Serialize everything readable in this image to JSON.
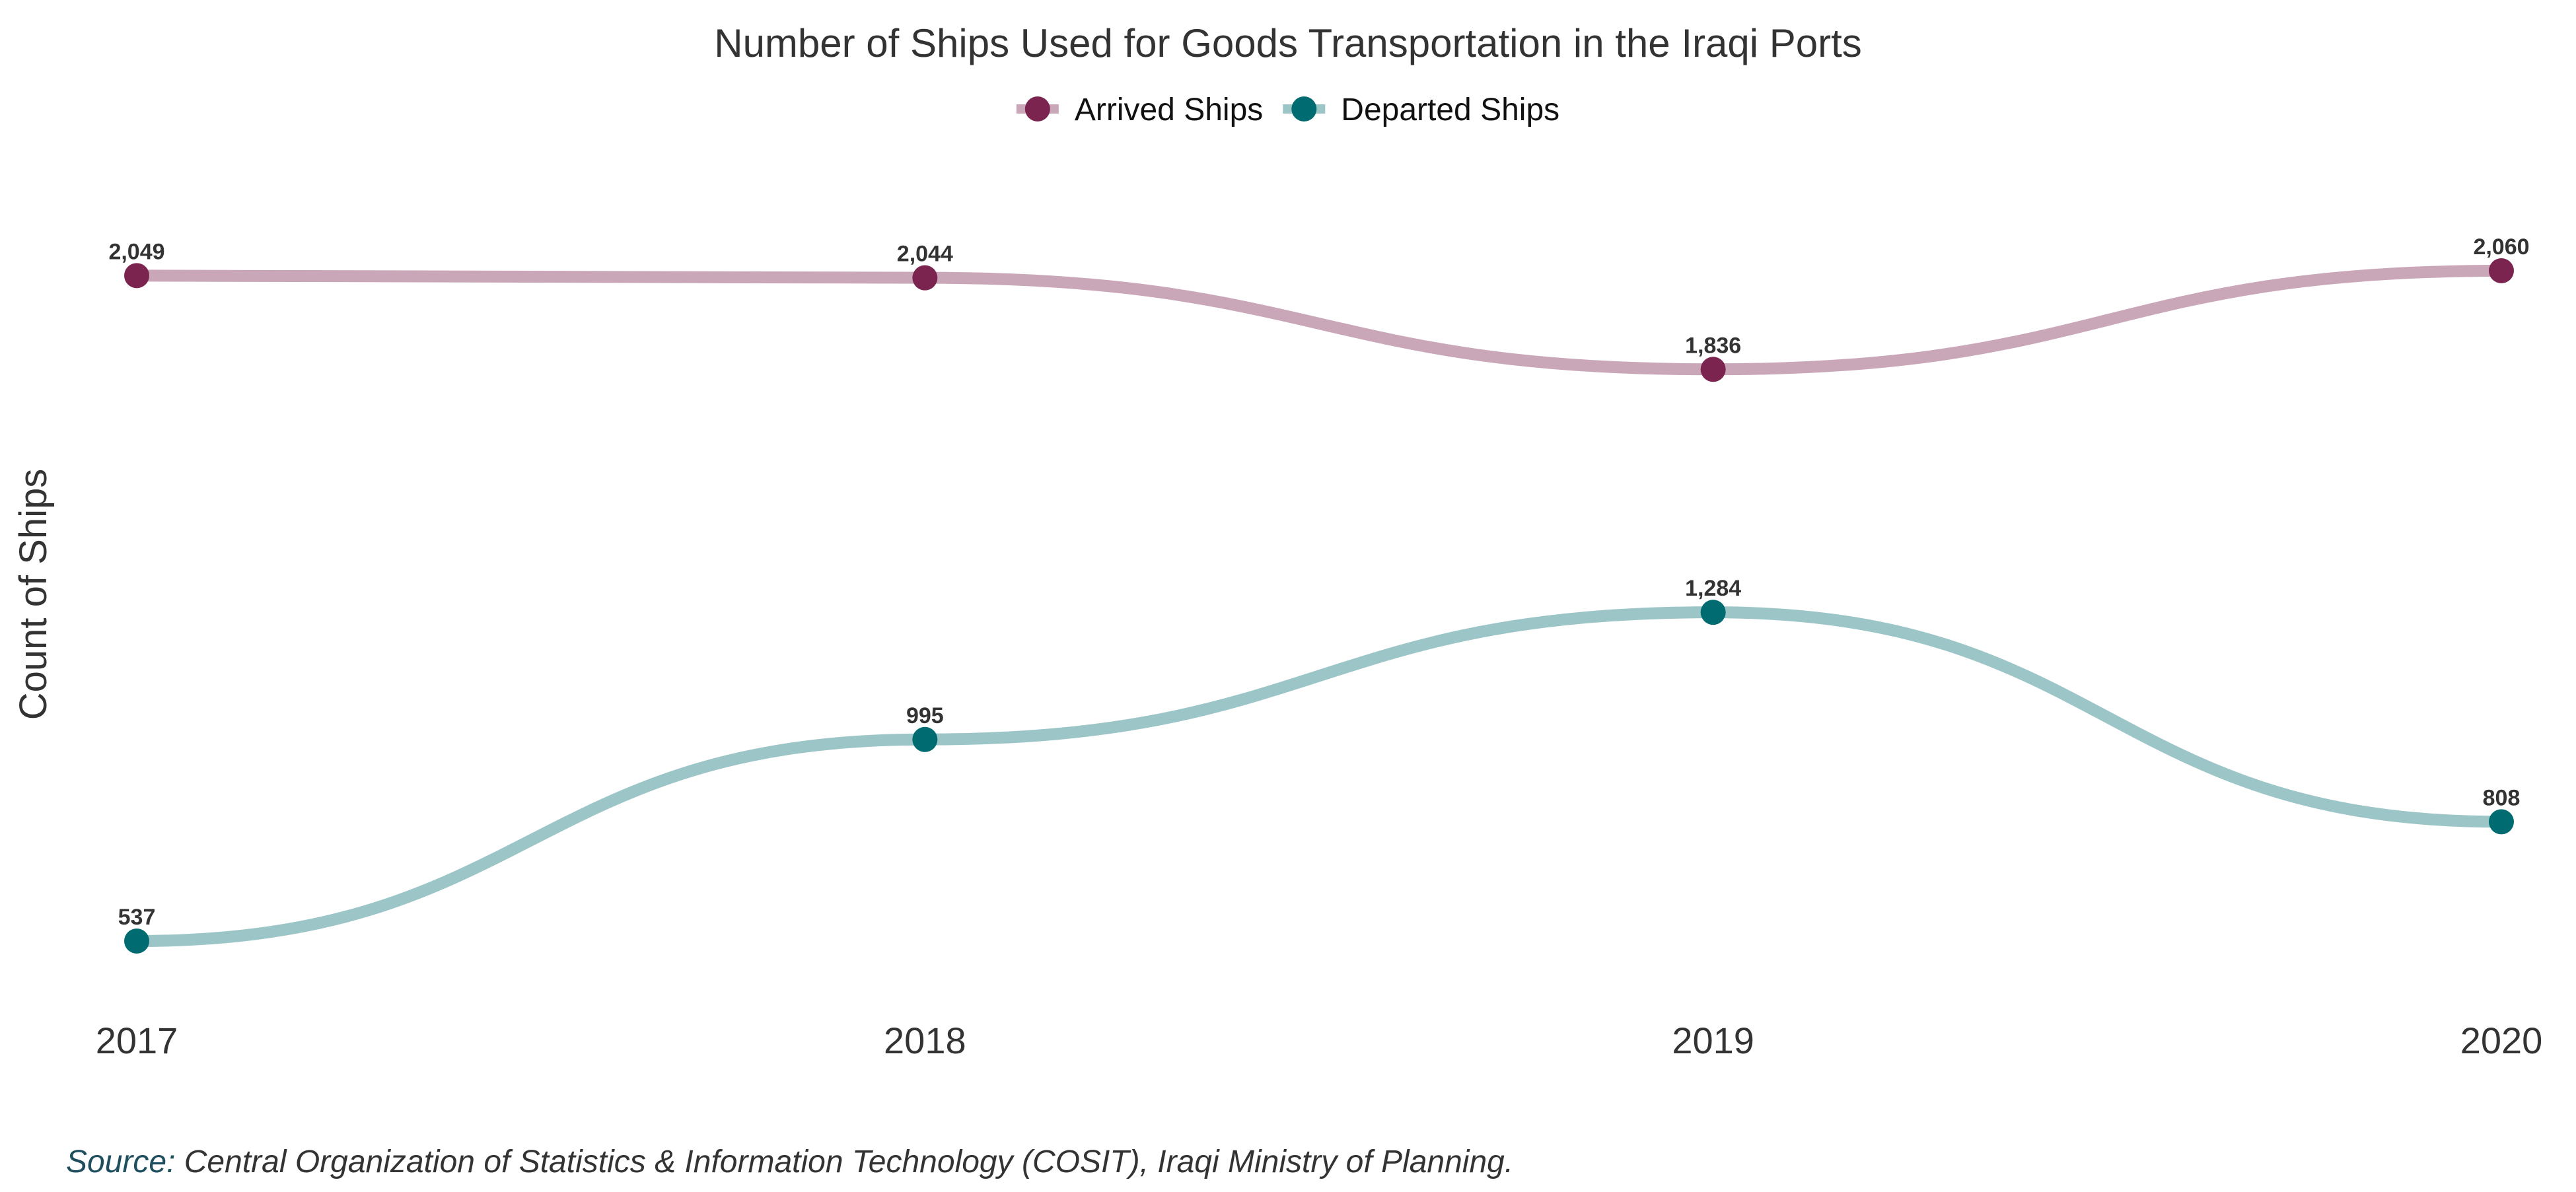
{
  "chart_data": {
    "type": "line",
    "title": "Number of Ships Used for Goods Transportation in the Iraqi Ports",
    "xlabel": "",
    "ylabel": "Count of Ships",
    "x": [
      "2017",
      "2018",
      "2019",
      "2020"
    ],
    "ylim": [
      537,
      2060
    ],
    "grid": false,
    "smooth": true,
    "legend": {
      "placement": "top-center"
    },
    "series": [
      {
        "name": "Arrived Ships",
        "values": [
          2049,
          2044,
          1836,
          2060
        ],
        "labels": [
          "2,049",
          "2,044",
          "1,836",
          "2,060"
        ],
        "line_color": "#c9a6b8",
        "point_color": "#7b2450"
      },
      {
        "name": "Departed Ships",
        "values": [
          537,
          995,
          1284,
          808
        ],
        "labels": [
          "537",
          "995",
          "1,284",
          "808"
        ],
        "line_color": "#9cc5c8",
        "point_color": "#006b70"
      }
    ],
    "caption": {
      "prefix": "Source:",
      "text": " Central Organization of Statistics & Information Technology (COSIT), Iraqi Ministry of Planning."
    }
  }
}
